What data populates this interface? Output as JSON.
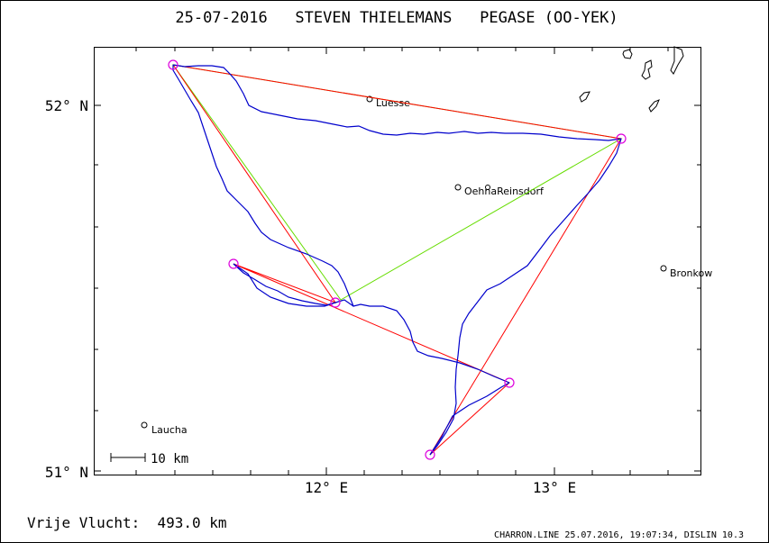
{
  "header": {
    "title": "25-07-2016   STEVEN THIELEMANS   PEGASE (OO-YEK)"
  },
  "axes": {
    "y_labels": [
      "52° N",
      "51° N"
    ],
    "x_labels": [
      "12° E",
      "13° E"
    ]
  },
  "scale_bar": {
    "label": "10 km"
  },
  "places": [
    {
      "name": "Luesse"
    },
    {
      "name": "OehnaReinsdorf"
    },
    {
      "name": "Bronkow"
    },
    {
      "name": "Laucha"
    }
  ],
  "footer": {
    "distance": "Vrije Vlucht:  493.0 km",
    "credit": "CHARRON.LINE 25.07.2016, 19:07:34, DISLIN 10.3"
  },
  "colors": {
    "track": "#0000cc",
    "course": "#ff0000",
    "triangle": "#66dd00",
    "turnpoint": "#dd00dd",
    "frame": "#000000"
  }
}
